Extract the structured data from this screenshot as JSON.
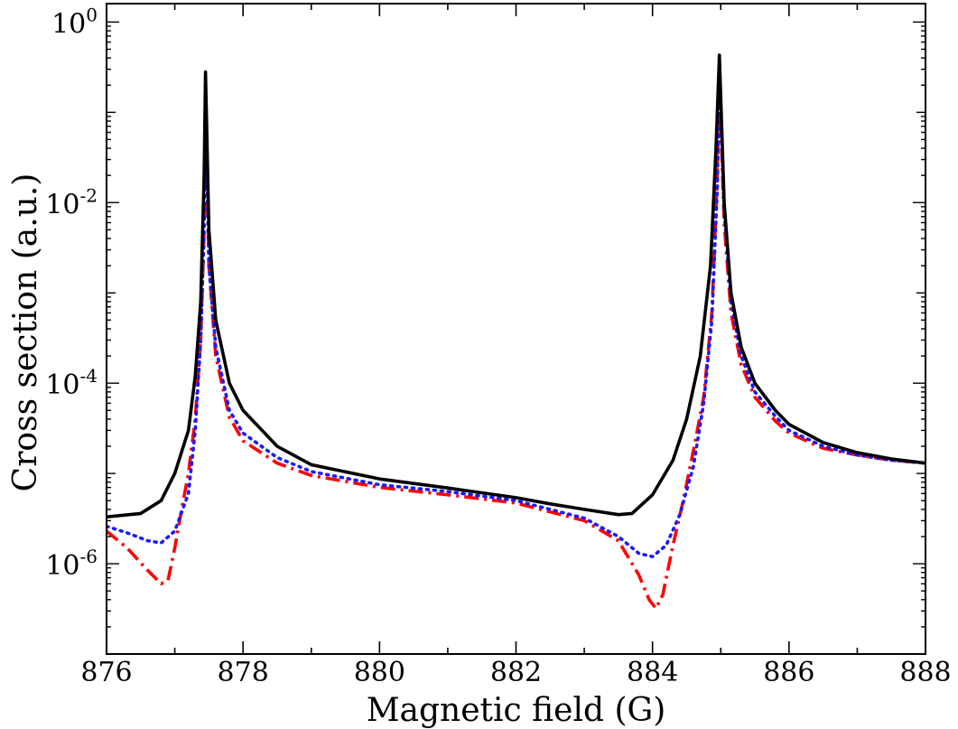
{
  "chart_data": {
    "type": "line",
    "title": "",
    "xlabel": "Magnetic field (G)",
    "ylabel": "Cross section (a.u.)",
    "xlim": [
      876,
      888
    ],
    "ylim": [
      1e-07,
      1.6
    ],
    "yscale": "log",
    "grid": false,
    "legend": "none",
    "x_ticks": [
      876,
      878,
      880,
      882,
      884,
      886,
      888
    ],
    "y_ticks": [
      {
        "base": "10",
        "exp": "0",
        "value": 1
      },
      {
        "base": "10",
        "exp": "-2",
        "value": 0.01
      },
      {
        "base": "10",
        "exp": "-4",
        "value": 0.0001
      },
      {
        "base": "10",
        "exp": "-6",
        "value": 1e-06
      }
    ],
    "series": [
      {
        "style": "solid",
        "color": "#000000",
        "x": [
          876.0,
          876.5,
          876.8,
          877.0,
          877.2,
          877.3,
          877.38,
          877.43,
          877.45,
          877.5,
          877.6,
          877.8,
          878.0,
          878.5,
          879.0,
          880.0,
          881.0,
          882.0,
          882.5,
          883.0,
          883.5,
          883.7,
          884.0,
          884.3,
          884.5,
          884.7,
          884.85,
          884.93,
          884.98,
          885.05,
          885.15,
          885.3,
          885.5,
          885.8,
          886.0,
          886.5,
          887.0,
          887.5,
          888.0
        ],
        "y": [
          3.3e-06,
          3.6e-06,
          5e-06,
          1e-05,
          3e-05,
          0.00012,
          0.0008,
          0.02,
          0.28,
          0.005,
          0.0005,
          0.0001,
          5e-05,
          2e-05,
          1.25e-05,
          8.7e-06,
          6.9e-06,
          5.4e-06,
          4.6e-06,
          4e-06,
          3.5e-06,
          3.6e-06,
          5.8e-06,
          1.4e-05,
          4e-05,
          0.0002,
          0.002,
          0.04,
          0.43,
          0.01,
          0.001,
          0.00025,
          0.0001,
          5e-05,
          3.5e-05,
          2.2e-05,
          1.7e-05,
          1.45e-05,
          1.3e-05
        ]
      },
      {
        "style": "dotted",
        "color": "#1a1aff",
        "x": [
          876.0,
          876.3,
          876.6,
          876.8,
          877.0,
          877.2,
          877.3,
          877.38,
          877.43,
          877.45,
          877.5,
          877.6,
          877.8,
          878.0,
          878.5,
          879.0,
          880.0,
          881.0,
          882.0,
          883.0,
          883.5,
          883.8,
          884.0,
          884.2,
          884.4,
          884.6,
          884.75,
          884.87,
          884.95,
          884.98,
          885.05,
          885.15,
          885.3,
          885.5,
          885.8,
          886.0,
          886.5,
          887.0,
          887.5,
          888.0
        ],
        "y": [
          2.6e-06,
          2.2e-06,
          1.8e-06,
          1.7e-06,
          2.3e-06,
          6e-06,
          3e-05,
          0.0003,
          0.005,
          0.12,
          0.002,
          0.00025,
          5e-05,
          2.8e-05,
          1.5e-05,
          1.05e-05,
          7.5e-06,
          6.3e-06,
          5e-06,
          3.2e-06,
          2e-06,
          1.3e-06,
          1.2e-06,
          1.6e-06,
          3.5e-06,
          1.2e-05,
          6e-05,
          0.0005,
          0.015,
          0.26,
          0.008,
          0.0008,
          0.0002,
          8e-05,
          4.3e-05,
          3e-05,
          2e-05,
          1.6e-05,
          1.4e-05,
          1.3e-05
        ]
      },
      {
        "style": "dashdot",
        "color": "#ff0000",
        "x": [
          876.0,
          876.3,
          876.6,
          876.8,
          876.9,
          877.0,
          877.1,
          877.2,
          877.3,
          877.38,
          877.43,
          877.45,
          877.5,
          877.6,
          877.8,
          878.0,
          878.5,
          879.0,
          880.0,
          881.0,
          882.0,
          883.0,
          883.5,
          883.8,
          883.95,
          884.05,
          884.15,
          884.3,
          884.45,
          884.6,
          884.75,
          884.87,
          884.95,
          884.98,
          885.05,
          885.15,
          885.3,
          885.5,
          885.8,
          886.0,
          886.5,
          887.0,
          887.5,
          888.0
        ],
        "y": [
          2.3e-06,
          1.5e-06,
          8.5e-07,
          6e-07,
          6.5e-07,
          1.5e-06,
          4e-06,
          1e-05,
          4e-05,
          0.0003,
          0.005,
          0.1,
          0.002,
          0.0002,
          4.2e-05,
          2.3e-05,
          1.3e-05,
          9.5e-06,
          7e-06,
          5.8e-06,
          4.7e-06,
          3e-06,
          1.8e-06,
          7.5e-07,
          4e-07,
          3.2e-07,
          4.5e-07,
          1.6e-06,
          5e-06,
          1.8e-05,
          7e-05,
          0.0006,
          0.02,
          0.22,
          0.006,
          0.0006,
          0.00016,
          7e-05,
          3.8e-05,
          2.8e-05,
          1.9e-05,
          1.6e-05,
          1.4e-05,
          1.3e-05
        ]
      }
    ]
  }
}
